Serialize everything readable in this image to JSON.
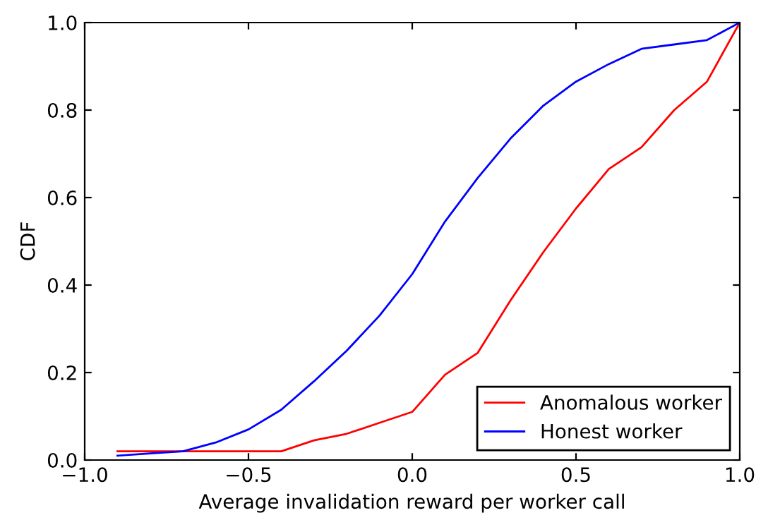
{
  "chart_data": {
    "type": "line",
    "xlabel": "Average invalidation reward per worker call",
    "ylabel": "CDF",
    "x": [
      -0.9,
      -0.8,
      -0.7,
      -0.6,
      -0.5,
      -0.4,
      -0.3,
      -0.2,
      -0.1,
      0.0,
      0.1,
      0.2,
      0.3,
      0.4,
      0.5,
      0.6,
      0.7,
      0.8,
      0.9,
      1.0
    ],
    "series": [
      {
        "name": "Anomalous worker",
        "color": "#ff0000",
        "values": [
          0.02,
          0.02,
          0.02,
          0.02,
          0.02,
          0.02,
          0.045,
          0.06,
          0.085,
          0.11,
          0.195,
          0.245,
          0.365,
          0.475,
          0.575,
          0.665,
          0.715,
          0.8,
          0.865,
          1.0
        ]
      },
      {
        "name": "Honest worker",
        "color": "#0000ff",
        "values": [
          0.01,
          0.015,
          0.02,
          0.04,
          0.07,
          0.115,
          0.18,
          0.25,
          0.33,
          0.425,
          0.545,
          0.645,
          0.735,
          0.81,
          0.865,
          0.905,
          0.94,
          0.95,
          0.96,
          1.0
        ]
      }
    ],
    "xlim": [
      -1.0,
      1.0
    ],
    "xticks": [
      {
        "value": -1.0,
        "label": "−1.0"
      },
      {
        "value": -0.5,
        "label": "−0.5"
      },
      {
        "value": 0.0,
        "label": "0.0"
      },
      {
        "value": 0.5,
        "label": "0.5"
      },
      {
        "value": 1.0,
        "label": "1.0"
      }
    ],
    "ylim": [
      0.0,
      1.0
    ],
    "yticks": [
      {
        "value": 0.0,
        "label": "0.0"
      },
      {
        "value": 0.2,
        "label": "0.2"
      },
      {
        "value": 0.4,
        "label": "0.4"
      },
      {
        "value": 0.6,
        "label": "0.6"
      },
      {
        "value": 0.8,
        "label": "0.8"
      },
      {
        "value": 1.0,
        "label": "1.0"
      }
    ],
    "grid": false,
    "legend": "lower right",
    "marker": "none",
    "line_style": "solid"
  }
}
